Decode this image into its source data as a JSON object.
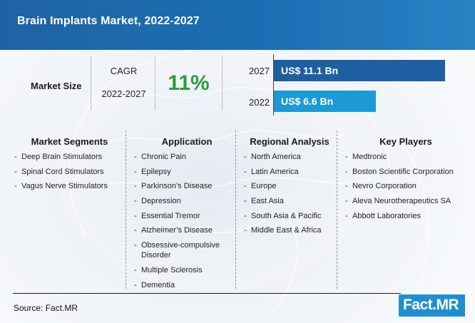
{
  "title": "Brain Implants Market, 2022-2027",
  "market_size": {
    "label": "Market Size",
    "cagr_label": "CAGR",
    "cagr_period": "2022-2027",
    "cagr_value": "11%",
    "bars": [
      {
        "year": "2027",
        "label": "US$ 11.1 Bn",
        "value": 11.1
      },
      {
        "year": "2022",
        "label": "US$ 6.6 Bn",
        "value": 6.6
      }
    ]
  },
  "sections": [
    {
      "heading": "Market Segments",
      "items": [
        "Deep Brain Stimulators",
        "Spinal Cord Stimulators",
        "Vagus Nerve Stimulators"
      ]
    },
    {
      "heading": "Application",
      "items": [
        "Chronic Pain",
        "Epilepsy",
        "Parkinson’s Disease",
        "Depression",
        "Essential Tremor",
        "Alzheimer’s Disease",
        "Obsessive-compulsive Disorder",
        "Multiple Sclerosis",
        "Dementia"
      ]
    },
    {
      "heading": "Regional Analysis",
      "items": [
        "North America",
        "Latin America",
        "Europe",
        "East Asia",
        "South Asia & Pacific",
        "Middle East & Africa"
      ]
    },
    {
      "heading": "Key Players",
      "items": [
        "Medtronic",
        "Boston Scientific Corporation",
        "Nevro Corporation",
        "Aleva Neurotherapeutics SA",
        "Abbott Laboratories"
      ]
    }
  ],
  "source": "Source: Fact.MR",
  "logo": "Fact.MR",
  "colors": {
    "header": "#1f63a3",
    "bar_2027": "#1d5fa0",
    "bar_2022": "#1b9ad6",
    "cagr": "#2f9c3e",
    "logo": "#1f8fd2"
  }
}
